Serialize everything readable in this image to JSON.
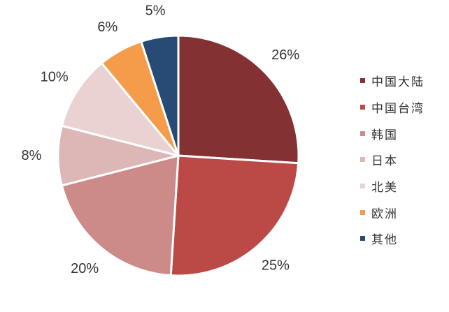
{
  "chart_data": {
    "type": "pie",
    "title": "",
    "categories": [
      "中国大陆",
      "中国台湾",
      "韩国",
      "日本",
      "北美",
      "欧洲",
      "其他"
    ],
    "values": [
      26,
      25,
      20,
      8,
      10,
      6,
      5
    ],
    "value_labels": [
      "26%",
      "25%",
      "20%",
      "8%",
      "10%",
      "6%",
      "5%"
    ],
    "colors": [
      "#833132",
      "#bb4a47",
      "#cc8a89",
      "#ddb7b6",
      "#ebd2d2",
      "#f59c4a",
      "#284b75"
    ],
    "start_angle_deg": 0,
    "direction": "clockwise",
    "legend_position": "right"
  }
}
